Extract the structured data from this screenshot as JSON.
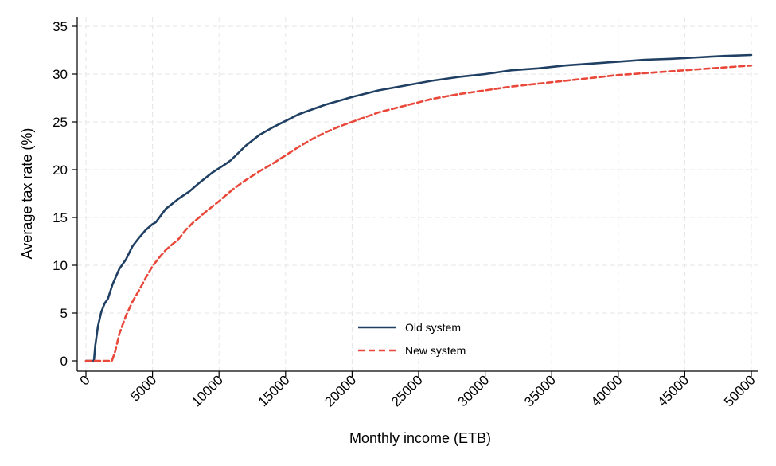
{
  "chart_data": {
    "type": "line",
    "title": "",
    "xlabel": "Monthly income (ETB)",
    "ylabel": "Average tax rate (%)",
    "xlim": [
      0,
      50000
    ],
    "ylim": [
      0,
      35
    ],
    "xticks": [
      0,
      5000,
      10000,
      15000,
      20000,
      25000,
      30000,
      35000,
      40000,
      45000,
      50000
    ],
    "yticks": [
      0,
      5,
      10,
      15,
      20,
      25,
      30,
      35
    ],
    "grid": true,
    "legend_position": "bottom-center",
    "series": [
      {
        "name": "Old system",
        "color": "#1f3f63",
        "style": "solid",
        "x": [
          0,
          600,
          700,
          900,
          1150,
          1400,
          1650,
          2000,
          2500,
          3000,
          3500,
          4000,
          4500,
          5000,
          5250,
          6000,
          7000,
          7750,
          8500,
          9500,
          10500,
          10900,
          12000,
          13000,
          14000,
          15000,
          16000,
          17000,
          18000,
          19000,
          20000,
          22000,
          24000,
          26000,
          28000,
          30000,
          32000,
          34000,
          36000,
          38000,
          40000,
          42000,
          44000,
          46000,
          48000,
          50000
        ],
        "y": [
          0,
          0,
          1.6,
          3.6,
          5.1,
          6.0,
          6.5,
          8.0,
          9.6,
          10.6,
          12.0,
          12.9,
          13.7,
          14.3,
          14.5,
          15.9,
          17.0,
          17.7,
          18.6,
          19.7,
          20.6,
          21.0,
          22.5,
          23.6,
          24.4,
          25.1,
          25.8,
          26.3,
          26.8,
          27.2,
          27.6,
          28.3,
          28.8,
          29.3,
          29.7,
          30.0,
          30.4,
          30.6,
          30.9,
          31.1,
          31.3,
          31.5,
          31.6,
          31.75,
          31.9,
          32.0
        ]
      },
      {
        "name": "New system",
        "color": "#e8473a",
        "style": "dashed",
        "x": [
          0,
          1950,
          2200,
          2500,
          3000,
          3500,
          4000,
          4500,
          5000,
          5500,
          6000,
          7000,
          7500,
          8000,
          9000,
          10000,
          11000,
          12000,
          13000,
          14000,
          15000,
          16000,
          17000,
          18000,
          19000,
          20000,
          22000,
          24000,
          26000,
          28000,
          30000,
          32000,
          34000,
          36000,
          38000,
          40000,
          42000,
          44000,
          46000,
          48000,
          50000
        ],
        "y": [
          0,
          0,
          1.0,
          2.8,
          4.7,
          6.2,
          7.4,
          8.7,
          9.9,
          10.8,
          11.6,
          12.8,
          13.7,
          14.4,
          15.6,
          16.7,
          17.9,
          18.9,
          19.8,
          20.6,
          21.5,
          22.4,
          23.2,
          23.9,
          24.5,
          25.0,
          26.0,
          26.7,
          27.4,
          27.9,
          28.3,
          28.7,
          29.0,
          29.3,
          29.6,
          29.9,
          30.1,
          30.3,
          30.5,
          30.7,
          30.9
        ]
      }
    ]
  }
}
